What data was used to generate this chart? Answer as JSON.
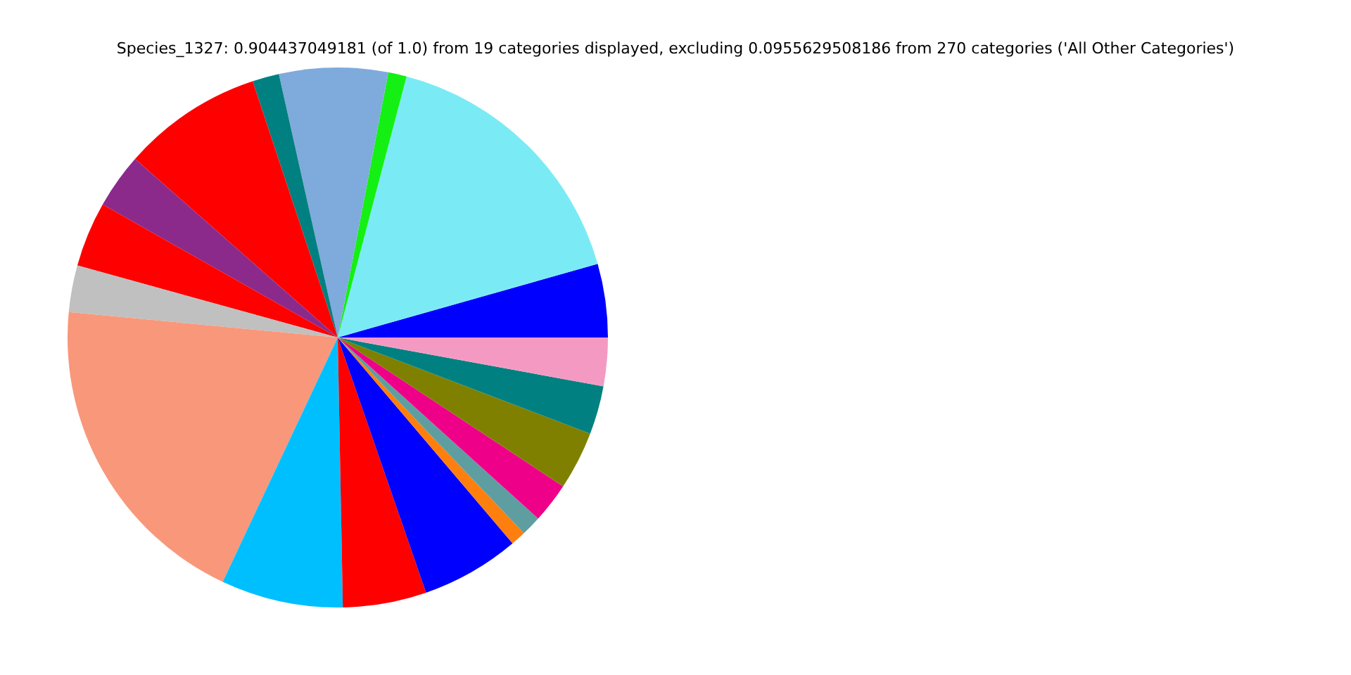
{
  "chart_data": {
    "type": "pie",
    "title": "Species_1327: 0.904437049181 (of 1.0) from 19 categories displayed, excluding 0.0955629508186 from 270 categories ('All Other Categories')",
    "categories": [
      null,
      null,
      null,
      null,
      null,
      null,
      null,
      null,
      null,
      null,
      null,
      null,
      null,
      null,
      null,
      null,
      null,
      null,
      null
    ],
    "values": [
      4.4,
      16.5,
      1.1,
      6.5,
      1.6,
      8.4,
      3.3,
      3.9,
      2.8,
      19.5,
      7.3,
      5.0,
      5.9,
      0.9,
      1.2,
      2.4,
      3.5,
      2.9,
      2.9
    ],
    "colors": [
      "#0000ff",
      "#7aebf4",
      "#14f014",
      "#7faadc",
      "#008080",
      "#ff0000",
      "#8b2a8b",
      "#ff0000",
      "#c0c0c0",
      "#f9977a",
      "#00bfff",
      "#ff0000",
      "#0000ff",
      "#ff7f0e",
      "#5f9ea0",
      "#ee0088",
      "#808000",
      "#008080",
      "#f49ac2"
    ]
  }
}
